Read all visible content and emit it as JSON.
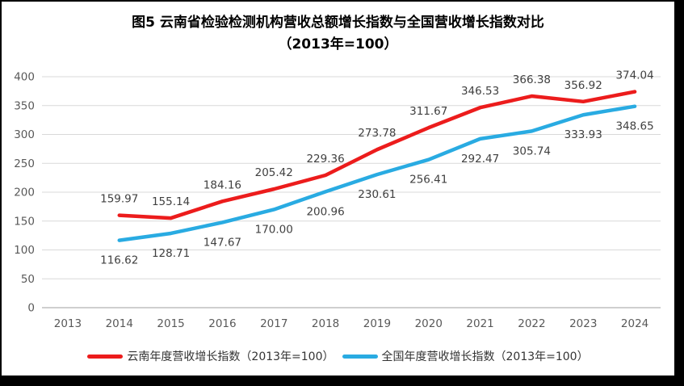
{
  "figure": {
    "title_line1": "图5  云南省检验检测机构营收总额增长指数与全国营收增长指数对比",
    "title_line2": "（2013年=100）"
  },
  "chart_data": {
    "type": "line",
    "categories": [
      "2013",
      "2014",
      "2015",
      "2016",
      "2017",
      "2018",
      "2019",
      "2020",
      "2021",
      "2022",
      "2023",
      "2024"
    ],
    "series": [
      {
        "id": "yunnan",
        "name": "云南年度营收增长指数（2013年=100）",
        "color": "#ec1c1c",
        "label_position": "above",
        "values": [
          null,
          159.97,
          155.14,
          184.16,
          205.42,
          229.36,
          273.78,
          311.67,
          346.53,
          366.38,
          356.92,
          374.04
        ]
      },
      {
        "id": "national",
        "name": "全国年度营收增长指数（2013年=100）",
        "color": "#29abe2",
        "label_position": "below",
        "values": [
          null,
          116.62,
          128.71,
          147.67,
          170.0,
          200.96,
          230.61,
          256.41,
          292.47,
          305.74,
          333.93,
          348.65
        ]
      }
    ],
    "ylim": [
      0,
      400
    ],
    "ytick_step": 50,
    "grid": "horizontal",
    "legend_position": "bottom",
    "data_labels": true
  },
  "colors": {
    "yunnan_line": "#ec1c1c",
    "national_line": "#29abe2",
    "gridline": "#d9d9d9",
    "axis_line": "#bfbfbf",
    "tick_label": "#595959",
    "data_label": "#404040",
    "title": "#000000",
    "background": "#ffffff",
    "border": "#000000"
  }
}
